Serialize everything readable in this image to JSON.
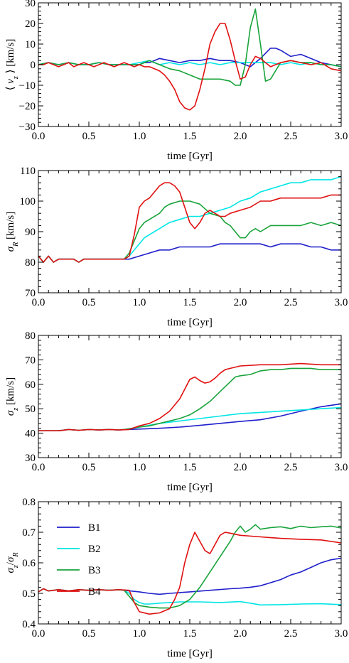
{
  "chart_data": [
    {
      "type": "line",
      "xlabel": "time [Gyr]",
      "ylabel": "⟨ v_z ⟩ [km/s]",
      "xlim": [
        0,
        3
      ],
      "ylim": [
        -30,
        30
      ],
      "xticks": [
        "0.0",
        "0.5",
        "1.0",
        "1.5",
        "2.0",
        "2.5",
        "3.0"
      ],
      "yticks": [
        "−30",
        "−20",
        "−10",
        "0",
        "10",
        "20",
        "30"
      ],
      "ytick_values": [
        -30,
        -20,
        -10,
        0,
        10,
        20,
        30
      ],
      "grid": false,
      "series": [
        {
          "name": "B1",
          "color": "#1f1fcc",
          "x": [
            0,
            0.1,
            0.2,
            0.3,
            0.4,
            0.5,
            0.6,
            0.7,
            0.8,
            0.9,
            1.0,
            1.05,
            1.1,
            1.2,
            1.3,
            1.4,
            1.5,
            1.6,
            1.7,
            1.8,
            1.9,
            2.0,
            2.1,
            2.2,
            2.3,
            2.35,
            2.4,
            2.5,
            2.6,
            2.7,
            2.8,
            2.9,
            3.0
          ],
          "y": [
            0,
            1,
            0,
            1,
            0,
            0,
            1,
            0,
            0,
            0,
            0,
            1,
            1,
            3,
            2,
            1,
            2,
            2,
            3,
            2,
            2,
            1,
            -1,
            3,
            8,
            8,
            7,
            4,
            5,
            3,
            1,
            0,
            -1
          ]
        },
        {
          "name": "B2",
          "color": "#00e5e5",
          "x": [
            0,
            0.1,
            0.2,
            0.3,
            0.4,
            0.5,
            0.6,
            0.7,
            0.8,
            0.9,
            1.0,
            1.1,
            1.2,
            1.3,
            1.4,
            1.5,
            1.6,
            1.7,
            1.8,
            1.9,
            2.0,
            2.1,
            2.2,
            2.3,
            2.4,
            2.5,
            2.6,
            2.7,
            2.8,
            2.9,
            3.0
          ],
          "y": [
            0,
            1,
            0,
            1,
            0,
            0,
            1,
            0,
            0,
            0,
            1,
            2,
            0,
            1,
            0,
            1,
            0,
            1,
            0,
            1,
            1,
            1,
            1,
            1,
            0,
            1,
            0,
            1,
            0,
            0,
            -1
          ]
        },
        {
          "name": "B3",
          "color": "#17a33a",
          "x": [
            0,
            0.1,
            0.2,
            0.3,
            0.4,
            0.5,
            0.6,
            0.7,
            0.8,
            0.9,
            1.0,
            1.1,
            1.2,
            1.3,
            1.4,
            1.5,
            1.6,
            1.7,
            1.8,
            1.9,
            1.95,
            2.0,
            2.05,
            2.1,
            2.15,
            2.2,
            2.25,
            2.3,
            2.4,
            2.5,
            2.6,
            2.7,
            2.8,
            2.9,
            3.0
          ],
          "y": [
            0,
            1,
            0,
            1,
            0,
            0,
            1,
            0,
            0,
            0,
            0,
            2,
            0,
            -2,
            -3,
            -5,
            -7,
            -7,
            -7,
            -8,
            -10,
            -10,
            0,
            18,
            27,
            10,
            -8,
            -7,
            1,
            2,
            1,
            1,
            0,
            0,
            -1
          ]
        },
        {
          "name": "B4",
          "color": "#e01010",
          "x": [
            0,
            0.05,
            0.1,
            0.15,
            0.2,
            0.25,
            0.3,
            0.35,
            0.4,
            0.45,
            0.5,
            0.55,
            0.6,
            0.65,
            0.7,
            0.75,
            0.8,
            0.85,
            0.9,
            0.95,
            1.0,
            1.05,
            1.1,
            1.15,
            1.2,
            1.25,
            1.3,
            1.35,
            1.4,
            1.45,
            1.5,
            1.55,
            1.6,
            1.65,
            1.7,
            1.75,
            1.8,
            1.85,
            1.9,
            1.95,
            2.0,
            2.05,
            2.1,
            2.15,
            2.2,
            2.25,
            2.3,
            2.35,
            2.4,
            2.5,
            2.6,
            2.7,
            2.8,
            2.9,
            3.0
          ],
          "y": [
            0,
            0,
            1,
            0,
            -1,
            0,
            1,
            -1,
            0,
            1,
            0,
            -1,
            0,
            1,
            0,
            -1,
            0,
            1,
            0,
            -1,
            0,
            -1,
            -1,
            -2,
            -3,
            -5,
            -8,
            -12,
            -18,
            -21,
            -22,
            -20,
            -12,
            -2,
            10,
            16,
            20,
            20,
            12,
            2,
            -7,
            -6,
            0,
            4,
            3,
            1,
            -1,
            0,
            1,
            2,
            1,
            0,
            1,
            -2,
            -3
          ]
        }
      ]
    },
    {
      "type": "line",
      "xlabel": "time [Gyr]",
      "ylabel": "σ_R [km/s]",
      "xlim": [
        0,
        3
      ],
      "ylim": [
        70,
        110
      ],
      "xticks": [
        "0.0",
        "0.5",
        "1.0",
        "1.5",
        "2.0",
        "2.5",
        "3.0"
      ],
      "yticks": [
        "70",
        "80",
        "90",
        "100",
        "110"
      ],
      "ytick_values": [
        70,
        80,
        90,
        100,
        110
      ],
      "grid": false,
      "series": [
        {
          "name": "B1",
          "color": "#1f1fcc",
          "x": [
            0.85,
            0.9,
            1.0,
            1.1,
            1.2,
            1.3,
            1.4,
            1.5,
            1.6,
            1.7,
            1.8,
            1.9,
            2.0,
            2.1,
            2.2,
            2.3,
            2.4,
            2.5,
            2.6,
            2.7,
            2.8,
            2.9,
            3.0
          ],
          "y": [
            81,
            81,
            82,
            83,
            84,
            84,
            85,
            85,
            85,
            85,
            86,
            86,
            86,
            86,
            86,
            85,
            86,
            86,
            86,
            85,
            85,
            84,
            84
          ]
        },
        {
          "name": "B2",
          "color": "#00e5e5",
          "x": [
            0.85,
            0.9,
            0.95,
            1.0,
            1.05,
            1.1,
            1.2,
            1.3,
            1.4,
            1.5,
            1.6,
            1.7,
            1.8,
            1.9,
            2.0,
            2.1,
            2.2,
            2.3,
            2.4,
            2.5,
            2.6,
            2.7,
            2.8,
            2.9,
            3.0
          ],
          "y": [
            81,
            82,
            84,
            86,
            88,
            89,
            91,
            93,
            94,
            95,
            95,
            96,
            97,
            98,
            100,
            101,
            103,
            104,
            105,
            106,
            106,
            107,
            107,
            107,
            108
          ]
        },
        {
          "name": "B3",
          "color": "#17a33a",
          "x": [
            0.85,
            0.9,
            0.95,
            1.0,
            1.05,
            1.1,
            1.2,
            1.25,
            1.3,
            1.4,
            1.5,
            1.6,
            1.7,
            1.8,
            1.85,
            1.9,
            1.95,
            2.0,
            2.05,
            2.1,
            2.15,
            2.2,
            2.3,
            2.4,
            2.5,
            2.6,
            2.7,
            2.8,
            2.9,
            3.0
          ],
          "y": [
            81,
            83,
            87,
            91,
            93,
            94,
            96,
            98,
            99,
            100,
            100,
            99,
            96,
            95,
            93,
            92,
            90,
            88,
            88,
            90,
            91,
            90,
            92,
            92,
            92,
            92,
            93,
            92,
            93,
            92
          ]
        },
        {
          "name": "B4",
          "color": "#e01010",
          "x": [
            0,
            0.05,
            0.1,
            0.15,
            0.2,
            0.25,
            0.3,
            0.35,
            0.4,
            0.45,
            0.5,
            0.55,
            0.6,
            0.7,
            0.8,
            0.85,
            0.9,
            0.95,
            1.0,
            1.05,
            1.1,
            1.15,
            1.2,
            1.25,
            1.3,
            1.35,
            1.4,
            1.45,
            1.5,
            1.55,
            1.6,
            1.65,
            1.7,
            1.75,
            1.8,
            1.85,
            1.9,
            2.0,
            2.1,
            2.2,
            2.3,
            2.4,
            2.5,
            2.6,
            2.7,
            2.8,
            2.9,
            3.0
          ],
          "y": [
            82,
            80,
            82,
            80,
            81,
            81,
            81,
            81,
            80,
            81,
            81,
            81,
            81,
            81,
            81,
            81,
            82,
            89,
            98,
            100,
            101,
            103,
            105,
            106,
            106,
            105,
            103,
            98,
            93,
            91,
            93,
            96,
            97,
            96,
            95,
            95,
            96,
            97,
            98,
            100,
            100,
            101,
            101,
            101,
            101,
            101,
            102,
            102
          ]
        }
      ]
    },
    {
      "type": "line",
      "xlabel": "time [Gyr]",
      "ylabel": "σ_z [km/s]",
      "xlim": [
        0,
        3
      ],
      "ylim": [
        30,
        80
      ],
      "xticks": [
        "0.0",
        "0.5",
        "1.0",
        "1.5",
        "2.0",
        "2.5",
        "3.0"
      ],
      "yticks": [
        "30",
        "40",
        "50",
        "60",
        "70",
        "80"
      ],
      "ytick_values": [
        30,
        40,
        50,
        60,
        70,
        80
      ],
      "grid": false,
      "series": [
        {
          "name": "B1",
          "color": "#1f1fcc",
          "x": [
            0.85,
            1.0,
            1.2,
            1.4,
            1.6,
            1.8,
            2.0,
            2.2,
            2.4,
            2.6,
            2.8,
            3.0
          ],
          "y": [
            41.5,
            41.7,
            42,
            42.5,
            43.2,
            44,
            44.8,
            45.5,
            47,
            49,
            50.8,
            52
          ]
        },
        {
          "name": "B2",
          "color": "#00e5e5",
          "x": [
            0.85,
            1.0,
            1.2,
            1.4,
            1.6,
            1.8,
            2.0,
            2.2,
            2.4,
            2.6,
            2.8,
            3.0
          ],
          "y": [
            41.5,
            42.5,
            44,
            45,
            46,
            47,
            48,
            48.5,
            49,
            49.5,
            50,
            50.5
          ]
        },
        {
          "name": "B3",
          "color": "#17a33a",
          "x": [
            0.85,
            1.0,
            1.1,
            1.2,
            1.3,
            1.4,
            1.5,
            1.6,
            1.7,
            1.8,
            1.9,
            1.95,
            2.0,
            2.1,
            2.2,
            2.3,
            2.4,
            2.5,
            2.6,
            2.7,
            2.8,
            2.9,
            3.0
          ],
          "y": [
            41.5,
            42.5,
            43,
            44,
            45,
            46,
            47.5,
            50,
            53,
            57,
            61,
            63,
            63.5,
            64,
            65.5,
            66,
            66,
            66.5,
            66.5,
            66.5,
            66,
            66,
            66
          ]
        },
        {
          "name": "B4",
          "color": "#e01010",
          "x": [
            0,
            0.05,
            0.1,
            0.2,
            0.3,
            0.4,
            0.5,
            0.6,
            0.7,
            0.8,
            0.9,
            1.0,
            1.1,
            1.2,
            1.3,
            1.4,
            1.45,
            1.5,
            1.55,
            1.6,
            1.65,
            1.7,
            1.75,
            1.8,
            1.85,
            1.9,
            2.0,
            2.2,
            2.4,
            2.6,
            2.8,
            3.0
          ],
          "y": [
            41,
            41,
            41,
            41,
            41.5,
            41.2,
            41.5,
            41.3,
            41.5,
            41.3,
            41.5,
            43,
            44,
            46,
            49,
            54,
            58,
            62,
            63,
            61.5,
            60.5,
            61,
            62.5,
            64.5,
            66,
            66.5,
            67.5,
            68,
            68,
            68.5,
            68,
            68
          ]
        }
      ]
    },
    {
      "type": "line",
      "xlabel": "time [Gyr]",
      "ylabel": "σ_z/σ_R",
      "xlim": [
        0,
        3
      ],
      "ylim": [
        0.4,
        0.8
      ],
      "xticks": [
        "0.0",
        "0.5",
        "1.0",
        "1.5",
        "2.0",
        "2.5",
        "3.0"
      ],
      "yticks": [
        "0.4",
        "0.5",
        "0.6",
        "0.7",
        "0.8"
      ],
      "ytick_values": [
        0.4,
        0.5,
        0.6,
        0.7,
        0.8
      ],
      "grid": false,
      "legend": {
        "position": "top-left",
        "entries": [
          "B1",
          "B2",
          "B3",
          "B4"
        ]
      },
      "series": [
        {
          "name": "B1",
          "color": "#1f1fcc",
          "x": [
            0.85,
            1.0,
            1.1,
            1.2,
            1.3,
            1.5,
            1.7,
            1.9,
            2.0,
            2.1,
            2.2,
            2.3,
            2.4,
            2.5,
            2.6,
            2.7,
            2.8,
            2.9,
            3.0
          ],
          "y": [
            0.51,
            0.505,
            0.5,
            0.497,
            0.5,
            0.505,
            0.51,
            0.515,
            0.517,
            0.52,
            0.525,
            0.535,
            0.545,
            0.56,
            0.57,
            0.585,
            0.6,
            0.61,
            0.615
          ]
        },
        {
          "name": "B2",
          "color": "#00e5e5",
          "x": [
            0.85,
            0.9,
            0.95,
            1.0,
            1.05,
            1.1,
            1.2,
            1.4,
            1.6,
            1.8,
            2.0,
            2.1,
            2.2,
            2.4,
            2.6,
            2.8,
            3.0
          ],
          "y": [
            0.51,
            0.5,
            0.48,
            0.47,
            0.465,
            0.465,
            0.468,
            0.472,
            0.472,
            0.47,
            0.473,
            0.468,
            0.462,
            0.463,
            0.465,
            0.466,
            0.463
          ]
        },
        {
          "name": "B3",
          "color": "#17a33a",
          "x": [
            0.85,
            0.9,
            0.95,
            1.0,
            1.1,
            1.2,
            1.3,
            1.4,
            1.5,
            1.6,
            1.7,
            1.8,
            1.9,
            1.95,
            2.0,
            2.05,
            2.1,
            2.15,
            2.2,
            2.3,
            2.4,
            2.5,
            2.6,
            2.7,
            2.8,
            2.9,
            3.0
          ],
          "y": [
            0.51,
            0.49,
            0.47,
            0.46,
            0.455,
            0.452,
            0.452,
            0.46,
            0.48,
            0.52,
            0.57,
            0.62,
            0.67,
            0.7,
            0.72,
            0.7,
            0.71,
            0.725,
            0.71,
            0.715,
            0.718,
            0.712,
            0.72,
            0.715,
            0.718,
            0.72,
            0.714
          ]
        },
        {
          "name": "B4",
          "color": "#e01010",
          "x": [
            0,
            0.05,
            0.1,
            0.2,
            0.3,
            0.4,
            0.5,
            0.6,
            0.7,
            0.8,
            0.9,
            0.95,
            1.0,
            1.1,
            1.2,
            1.3,
            1.35,
            1.4,
            1.45,
            1.5,
            1.55,
            1.6,
            1.65,
            1.7,
            1.75,
            1.8,
            1.85,
            1.9,
            2.0,
            2.2,
            2.4,
            2.6,
            2.8,
            3.0
          ],
          "y": [
            0.505,
            0.515,
            0.508,
            0.512,
            0.508,
            0.512,
            0.51,
            0.512,
            0.51,
            0.512,
            0.51,
            0.47,
            0.44,
            0.432,
            0.436,
            0.45,
            0.48,
            0.52,
            0.6,
            0.66,
            0.7,
            0.67,
            0.64,
            0.63,
            0.66,
            0.69,
            0.7,
            0.697,
            0.69,
            0.685,
            0.68,
            0.677,
            0.675,
            0.665
          ]
        }
      ]
    }
  ]
}
